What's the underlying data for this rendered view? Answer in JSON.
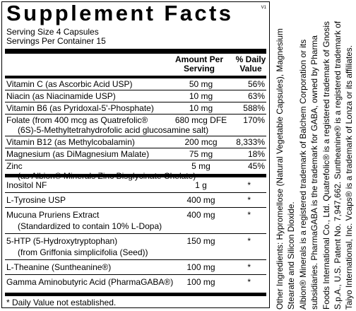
{
  "label": {
    "title": "Supplement Facts",
    "version": "V1",
    "serving_size": "Serving Size 4 Capsules",
    "servings_per_container": "Servings Per Container 15",
    "header": {
      "amount": "Amount Per Serving",
      "daily_value": "% Daily Value"
    },
    "groups": [
      [
        {
          "name": "Vitamin C (as Ascorbic Acid USP)",
          "amount": "50 mg",
          "dv": "56%"
        },
        {
          "name": "Niacin (as Niacinamide USP)",
          "amount": "10 mg",
          "dv": "63%"
        },
        {
          "name": "Vitamin B6 (as Pyridoxal-5'-Phosphate)",
          "amount": "10 mg",
          "dv": "588%"
        },
        {
          "name": "Folate (from 400 mcg as Quatrefolic®",
          "sub": "(6S)-5-Methyltetrahydrofolic acid glucosamine salt)",
          "amount": "680 mcg DFE",
          "dv": "170%"
        },
        {
          "name": "Vitamin B12 (as Methylcobalamin)",
          "amount": "200 mcg",
          "dv": "8,333%"
        },
        {
          "name": "Magnesium (as DiMagnesium Malate)",
          "amount": "75 mg",
          "dv": "18%"
        },
        {
          "name": "Zinc",
          "sub": "(as Albion® Minerals Zinc Bisglycinate Chelate)",
          "amount": "5 mg",
          "dv": "45%"
        }
      ],
      [
        {
          "name": "Inositol NF",
          "amount": "1 g",
          "dv": "*"
        },
        {
          "name": "L-Tyrosine USP",
          "amount": "400 mg",
          "dv": "*"
        },
        {
          "name": "Mucuna Pruriens Extract",
          "sub": "(Standardized to contain 10% L-Dopa)",
          "amount": "400 mg",
          "dv": "*"
        },
        {
          "name": "5-HTP (5-Hydroxytryptophan)",
          "sub": "(from Griffonia simplicifolia (Seed))",
          "amount": "150 mg",
          "dv": "*"
        },
        {
          "name": "L-Theanine (Suntheanine®)",
          "amount": "100 mg",
          "dv": "*"
        },
        {
          "name": "Gamma Aminobutyric Acid (PharmaGABA®)",
          "amount": "100 mg",
          "dv": "*"
        }
      ]
    ],
    "footnote": "* Daily Value not established."
  },
  "side_text": [
    "Other Ingredients: Hypromellose (Natural Vegetable Capsules), Magnesium",
    "Stearate and Silicon Dioxide.",
    "Albion® Minerals is a registered trademark of Balchem Corporation or its",
    "subsidiaries. PharmaGABA is the trademark for GABA, owned by Pharma",
    "Foods International Co., Ltd. Quatrefolic® is a registered trademark of Gnosis",
    "S.p.A., U.S. Patent No. 7,947,662. Suntheanine® is a registered trademark of",
    "Taiyo International, Inc. Vcaps® is a trademark of Lonza or its affiliates."
  ]
}
